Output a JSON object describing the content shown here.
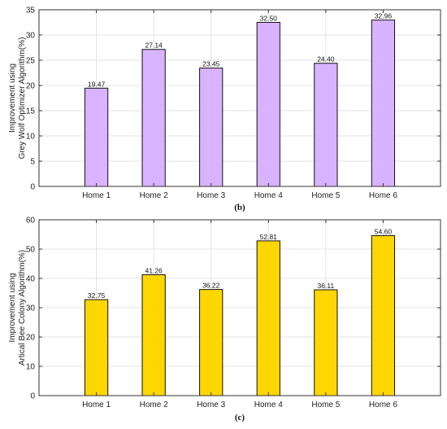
{
  "chart_data": [
    {
      "type": "bar",
      "panel_label": "(b)",
      "categories": [
        "Home 1",
        "Home 2",
        "Home 3",
        "Home 4",
        "Home 5",
        "Home 6"
      ],
      "values": [
        19.47,
        27.14,
        23.45,
        32.5,
        24.4,
        32.96
      ],
      "data_labels": [
        "19.47",
        "27.14",
        "23.45",
        "32.50",
        "24.40",
        "32.96"
      ],
      "ylabel_lines": [
        "Improvement using",
        "Grey Wolf Optimizer Algorithm(%)"
      ],
      "ylim": [
        0,
        35
      ],
      "yticks": [
        0,
        5,
        10,
        15,
        20,
        25,
        30,
        35
      ],
      "grid": true,
      "bar_color": "#d9b3ff",
      "edge_color": "#111111"
    },
    {
      "type": "bar",
      "panel_label": "(c)",
      "categories": [
        "Home 1",
        "Home 2",
        "Home 3",
        "Home 4",
        "Home 5",
        "Home 6"
      ],
      "values": [
        32.75,
        41.26,
        36.22,
        52.81,
        36.11,
        54.6
      ],
      "data_labels": [
        "32.75",
        "41.26",
        "36.22",
        "52.81",
        "36.11",
        "54.60"
      ],
      "ylabel_lines": [
        "Improvement using",
        "Artical Bee Colony Algorithm(%)"
      ],
      "ylim": [
        0,
        60
      ],
      "yticks": [
        0,
        10,
        20,
        30,
        40,
        50,
        60
      ],
      "grid": true,
      "bar_color": "#ffd700",
      "edge_color": "#111111"
    }
  ]
}
